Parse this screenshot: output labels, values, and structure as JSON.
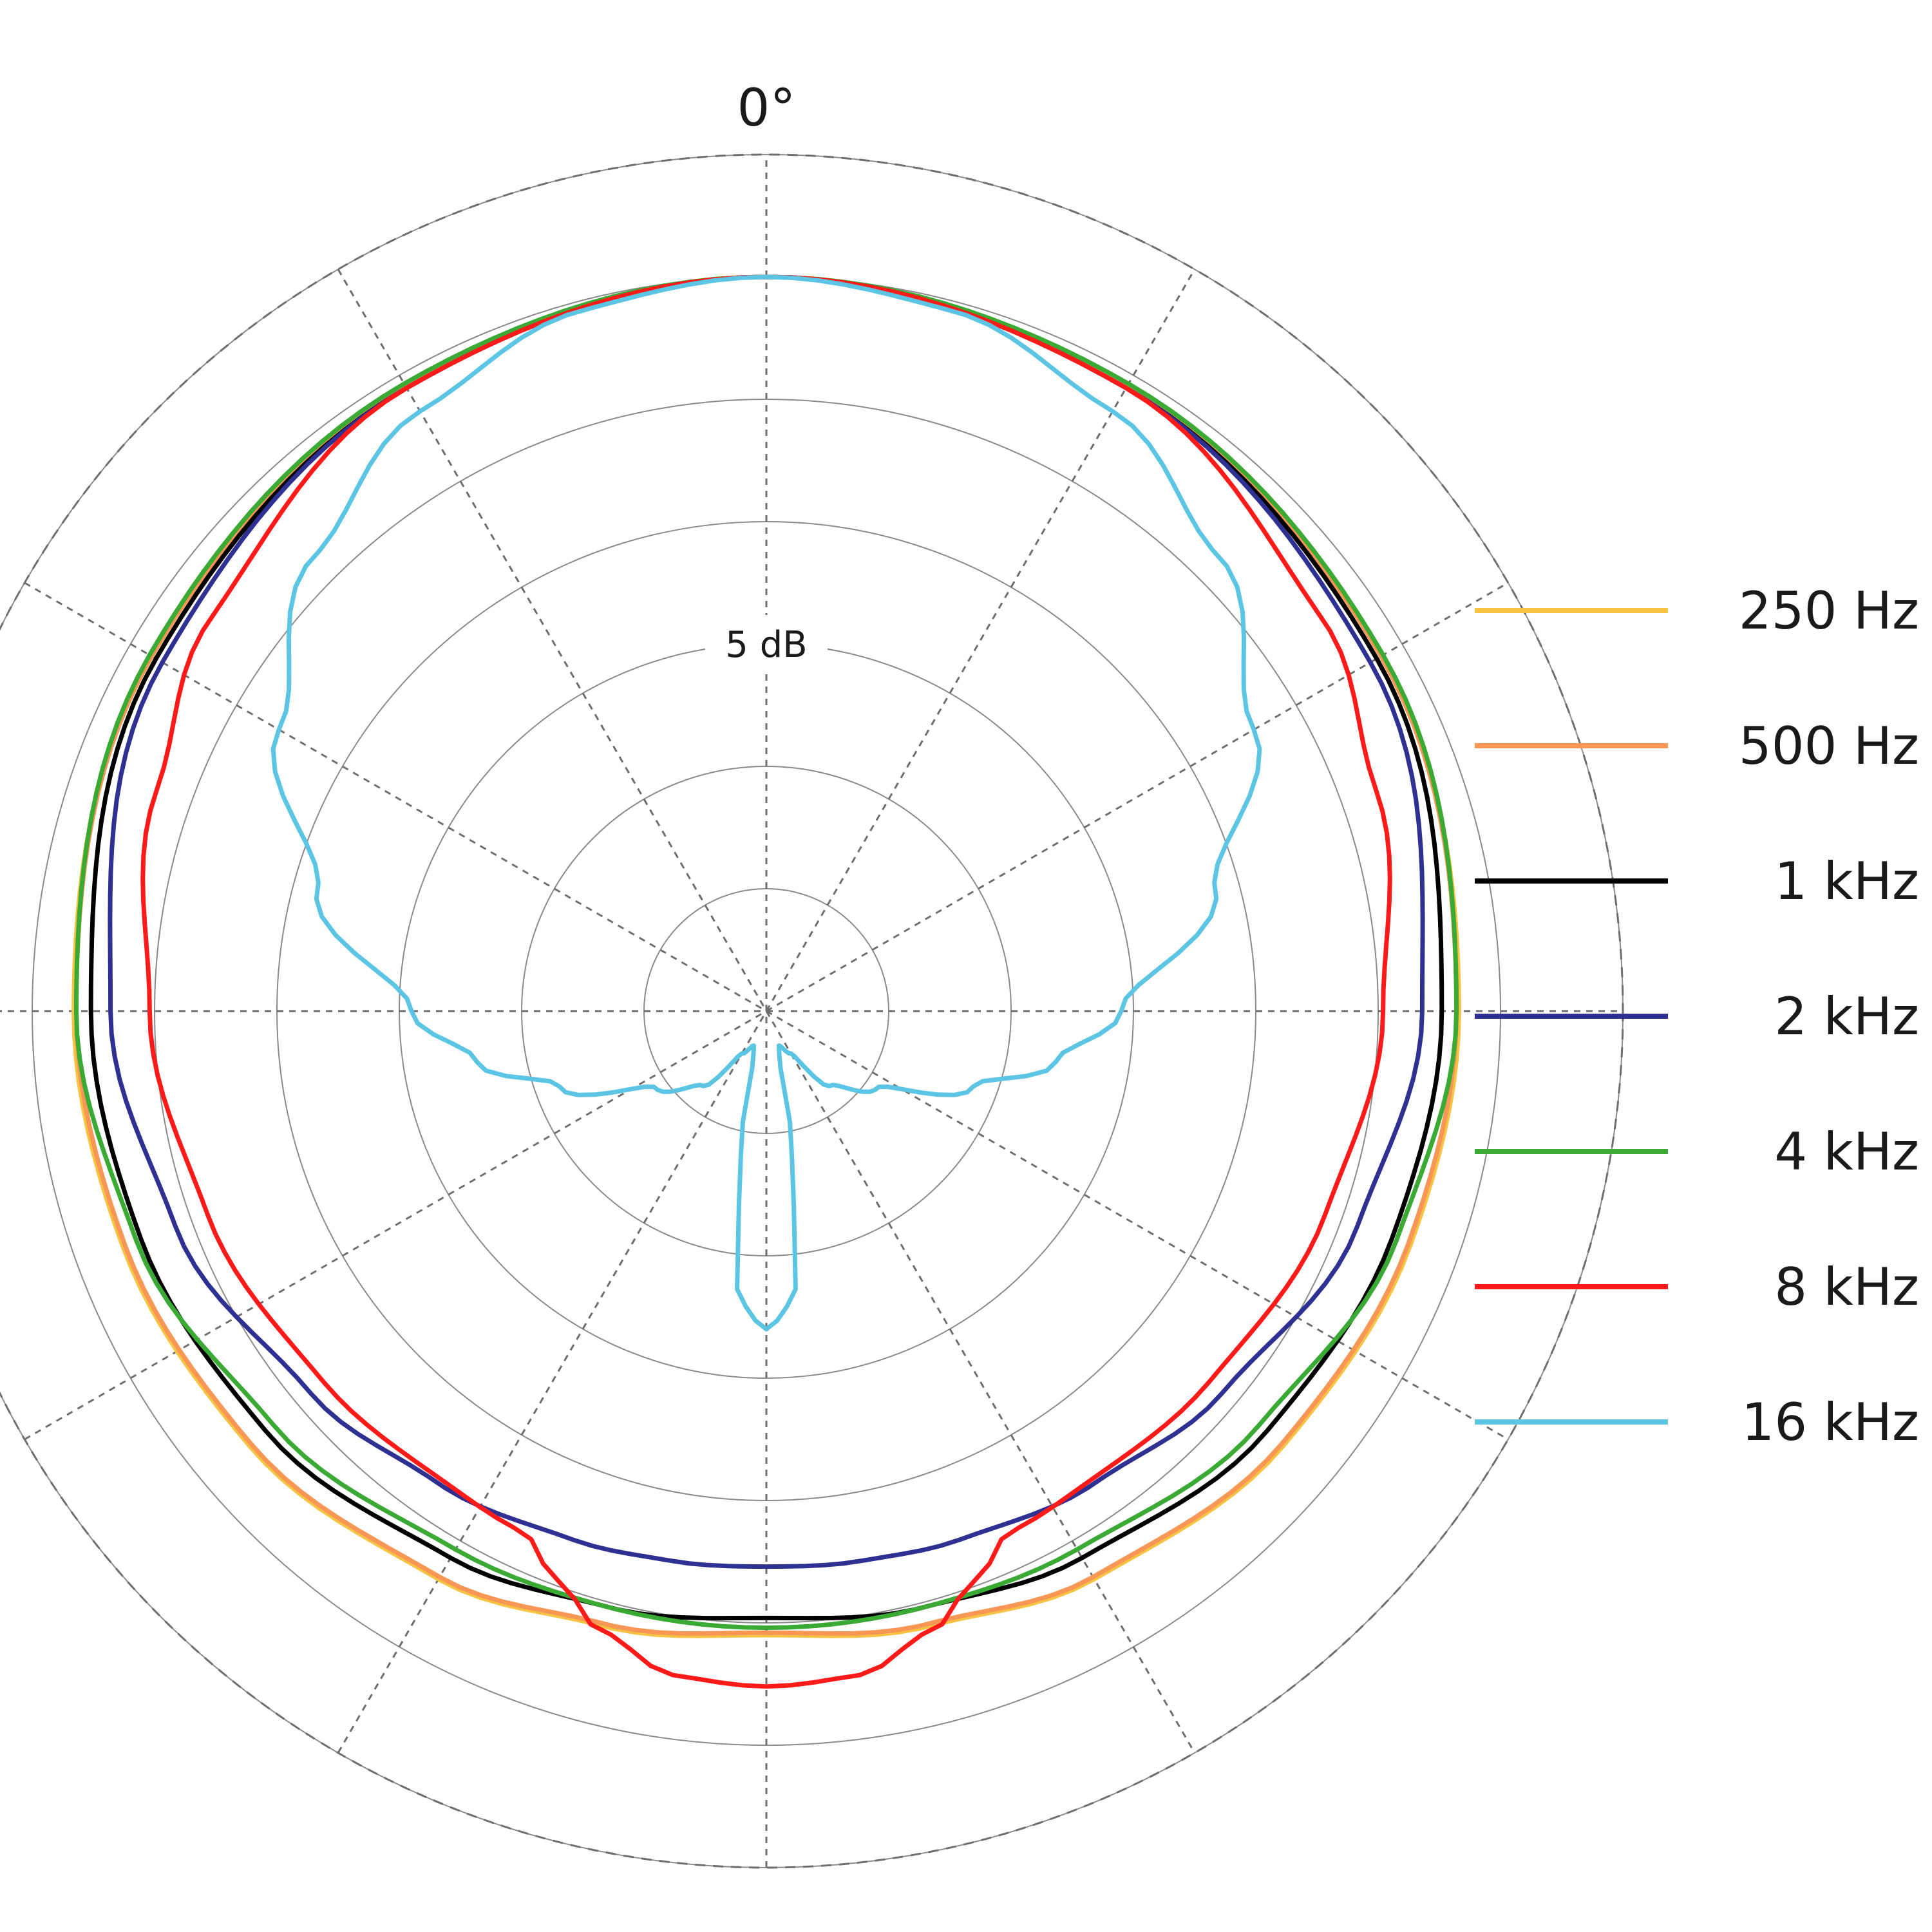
{
  "chart_data": {
    "type": "polar",
    "angle_label": "0°",
    "ring_label": "5 dB",
    "rings_db": [
      -25,
      -20,
      -15,
      -10,
      -5,
      0,
      5
    ],
    "spoke_step_deg": 30,
    "grid": true,
    "legend_position": "right",
    "series": [
      {
        "name": "250 Hz",
        "color": "#F6C343",
        "angles": [
          0,
          30,
          60,
          90,
          110,
          130,
          150,
          165,
          180
        ],
        "db": [
          0,
          -0.5,
          -1.0,
          -1.7,
          -2.0,
          -2.4,
          -3.2,
          -4.0,
          -4.5
        ]
      },
      {
        "name": "500 Hz",
        "color": "#F79655",
        "angles": [
          0,
          30,
          60,
          90,
          110,
          130,
          150,
          165,
          180
        ],
        "db": [
          0,
          -0.5,
          -1.0,
          -1.8,
          -2.1,
          -2.5,
          -3.3,
          -4.1,
          -4.6
        ]
      },
      {
        "name": "1 kHz",
        "color": "#000000",
        "angles": [
          0,
          30,
          60,
          90,
          110,
          130,
          150,
          165,
          180
        ],
        "db": [
          0,
          -0.6,
          -1.2,
          -2.4,
          -2.8,
          -3.3,
          -4.2,
          -4.8,
          -5.2
        ]
      },
      {
        "name": "2 kHz",
        "color": "#2E3192",
        "angles": [
          0,
          30,
          60,
          90,
          110,
          130,
          145,
          160,
          170,
          180
        ],
        "db": [
          0,
          -0.6,
          -1.5,
          -3.2,
          -4.3,
          -5.7,
          -6.5,
          -7.0,
          -7.2,
          -7.3
        ]
      },
      {
        "name": "4 kHz",
        "color": "#3AAA35",
        "angles": [
          0,
          30,
          60,
          90,
          110,
          130,
          150,
          165,
          180
        ],
        "db": [
          0,
          -0.4,
          -0.9,
          -1.8,
          -2.6,
          -3.7,
          -4.6,
          -4.8,
          -4.8
        ]
      },
      {
        "name": "8 kHz",
        "color": "#FF1A1A",
        "angles": [
          0,
          30,
          55,
          70,
          90,
          110,
          130,
          145,
          155,
          160,
          165,
          172,
          180
        ],
        "db": [
          0,
          -0.6,
          -2.2,
          -3.5,
          -4.8,
          -5.7,
          -6.4,
          -6.7,
          -6.5,
          -5.2,
          -3.8,
          -2.6,
          -2.4
        ]
      },
      {
        "name": "16 kHz",
        "color": "#5BC5E3",
        "angles": [
          0,
          15,
          30,
          45,
          60,
          75,
          90,
          100,
          110,
          125,
          140,
          150,
          160,
          165,
          170,
          175,
          180
        ],
        "db": [
          0,
          -0.4,
          -1.7,
          -3.8,
          -7.0,
          -11.0,
          -15.5,
          -18.0,
          -21.0,
          -24.5,
          -26.0,
          -28.0,
          -28.5,
          -28.0,
          -24.0,
          -18.0,
          -17.0
        ]
      }
    ]
  }
}
